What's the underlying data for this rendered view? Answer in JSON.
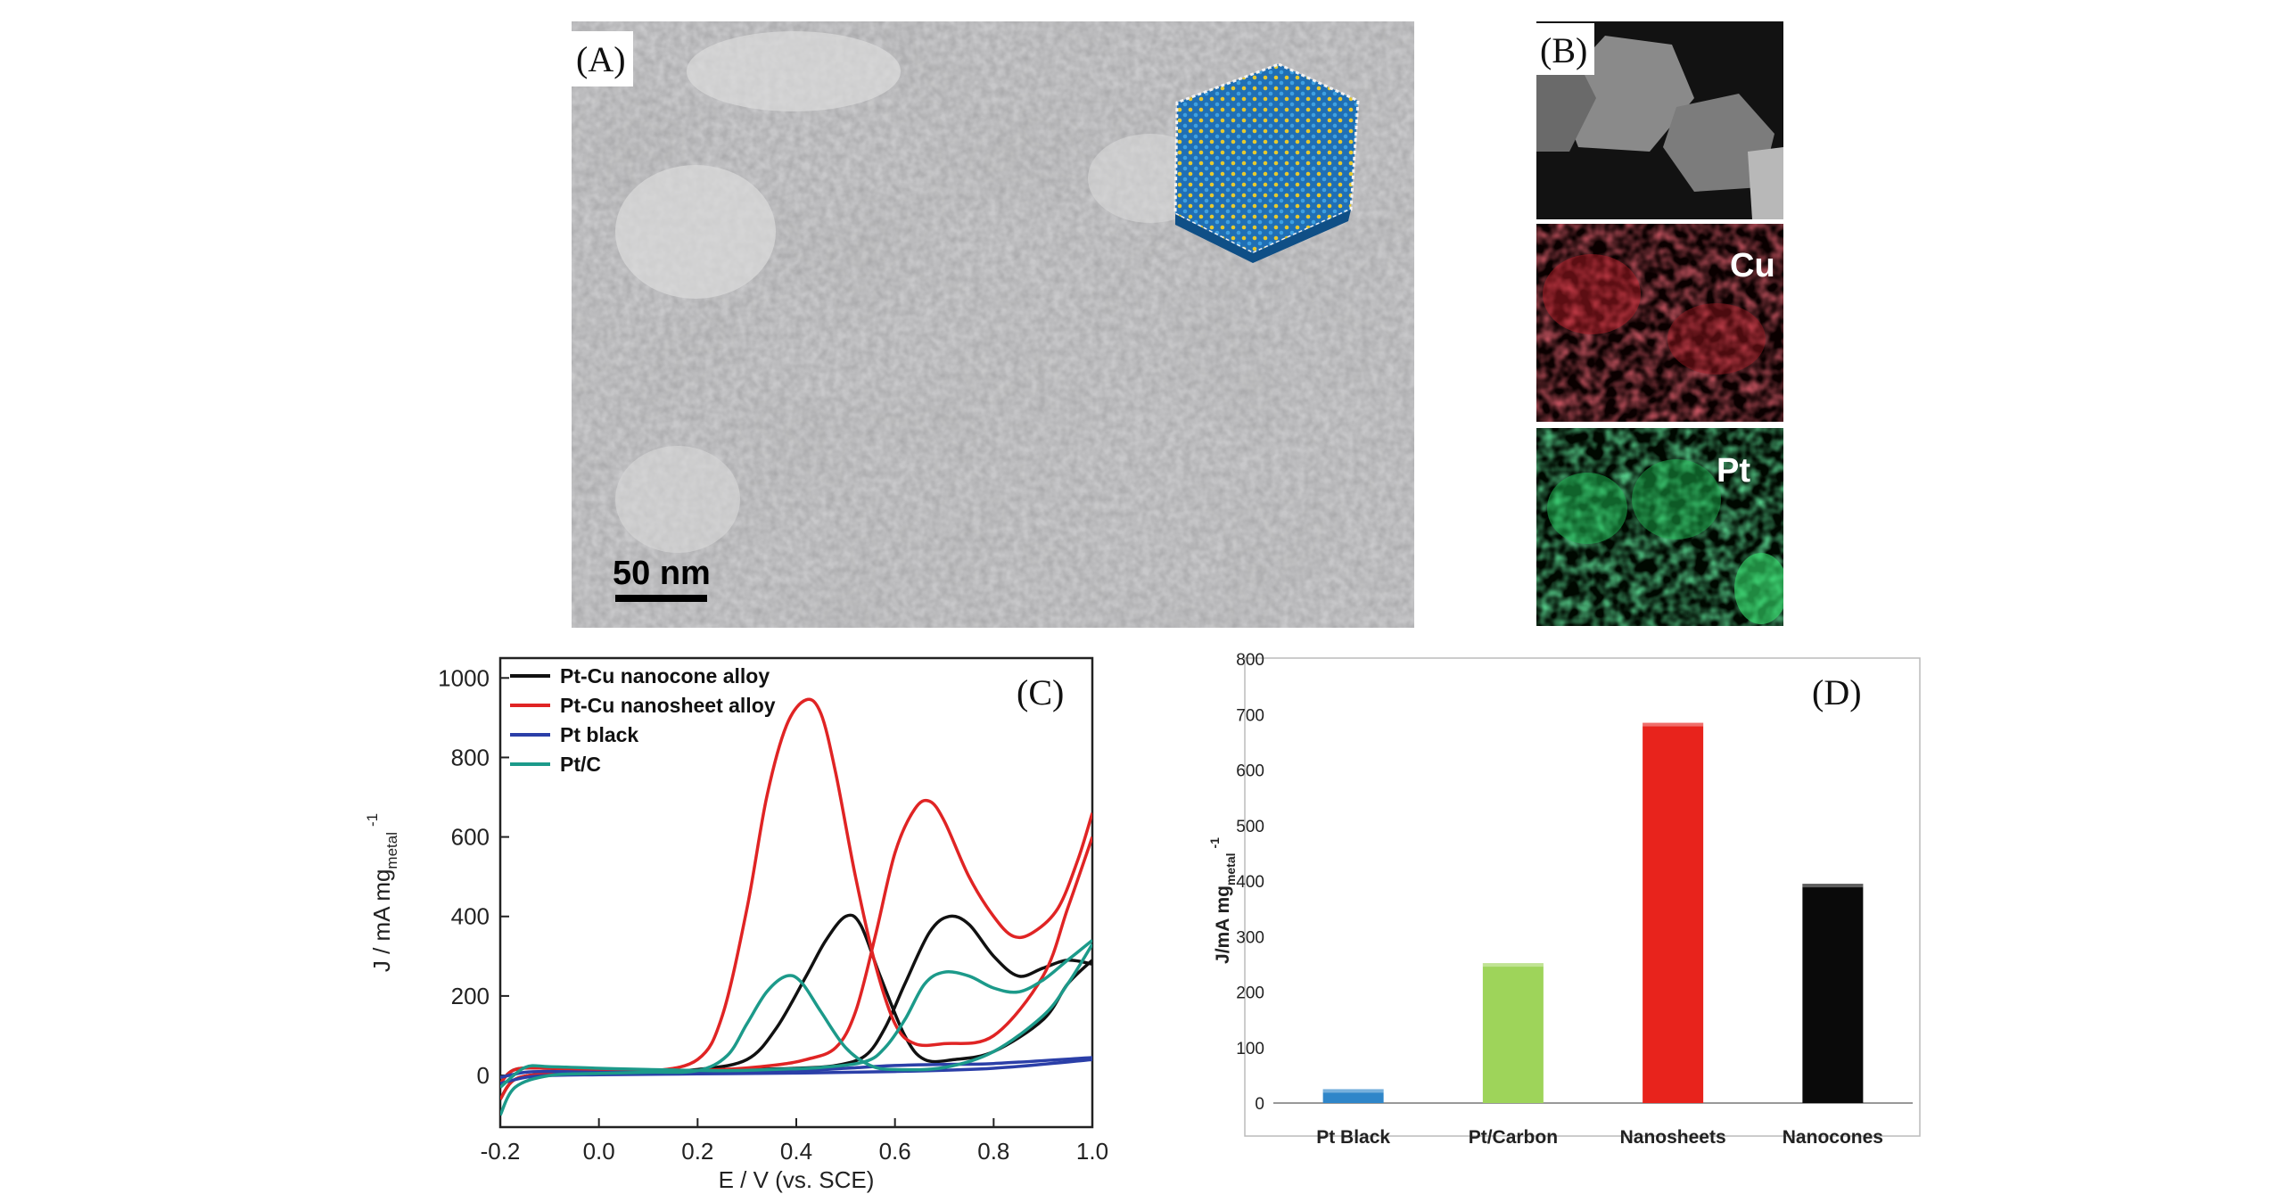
{
  "panel_a": {
    "label": "(A)",
    "scale_bar": "50 nm"
  },
  "panel_b": {
    "label": "(B)",
    "maps": [
      "Cu",
      "Pt"
    ]
  },
  "colors": {
    "nanocone": "#111111",
    "nanosheet": "#e02424",
    "pt_black": "#2b3fa8",
    "pt_c": "#1c9a8a",
    "bar_pt_black": "#2f86c9",
    "bar_pt_carbon": "#9ed45a",
    "bar_nanosheets": "#e8231c",
    "bar_nanocones": "#0a0a0a",
    "cu_map": "#c0202a",
    "pt_map": "#1fbe55"
  },
  "chart_data": [
    {
      "panel": "(C)",
      "type": "line",
      "xlabel": "E / V (vs. SCE)",
      "ylabel_main": "J / mA mg",
      "ylabel_sub": "metal",
      "ylabel_sup": "-1",
      "xlim": [
        -0.2,
        1.0
      ],
      "ylim": [
        -130,
        1050
      ],
      "xticks": [
        "-0.2",
        "0.0",
        "0.2",
        "0.4",
        "0.6",
        "0.8",
        "1.0"
      ],
      "yticks": [
        "0",
        "200",
        "400",
        "600",
        "800",
        "1000"
      ],
      "legend_position": "top-left",
      "series": [
        {
          "name": "Pt-Cu nanocone alloy",
          "color_key": "nanocone",
          "forward": [
            [
              -0.2,
              -60
            ],
            [
              -0.17,
              -10
            ],
            [
              -0.1,
              5
            ],
            [
              0.0,
              8
            ],
            [
              0.1,
              10
            ],
            [
              0.2,
              15
            ],
            [
              0.3,
              40
            ],
            [
              0.36,
              120
            ],
            [
              0.42,
              250
            ],
            [
              0.46,
              340
            ],
            [
              0.5,
              400
            ],
            [
              0.53,
              380
            ],
            [
              0.57,
              250
            ],
            [
              0.62,
              100
            ],
            [
              0.66,
              40
            ],
            [
              0.72,
              40
            ],
            [
              0.8,
              60
            ],
            [
              0.9,
              140
            ],
            [
              0.95,
              230
            ],
            [
              1.0,
              290
            ]
          ],
          "backward": [
            [
              1.0,
              280
            ],
            [
              0.95,
              290
            ],
            [
              0.9,
              270
            ],
            [
              0.85,
              250
            ],
            [
              0.8,
              300
            ],
            [
              0.75,
              380
            ],
            [
              0.71,
              400
            ],
            [
              0.67,
              360
            ],
            [
              0.62,
              230
            ],
            [
              0.58,
              120
            ],
            [
              0.54,
              50
            ],
            [
              0.48,
              25
            ],
            [
              0.4,
              18
            ],
            [
              0.3,
              15
            ],
            [
              0.2,
              12
            ],
            [
              0.1,
              10
            ],
            [
              0.0,
              12
            ],
            [
              -0.1,
              18
            ],
            [
              -0.17,
              15
            ],
            [
              -0.2,
              -20
            ]
          ]
        },
        {
          "name": "Pt-Cu nanosheet alloy",
          "color_key": "nanosheet",
          "forward": [
            [
              -0.2,
              -60
            ],
            [
              -0.17,
              -10
            ],
            [
              -0.1,
              5
            ],
            [
              0.0,
              8
            ],
            [
              0.1,
              10
            ],
            [
              0.2,
              40
            ],
            [
              0.25,
              150
            ],
            [
              0.3,
              420
            ],
            [
              0.34,
              700
            ],
            [
              0.38,
              880
            ],
            [
              0.42,
              945
            ],
            [
              0.45,
              910
            ],
            [
              0.48,
              760
            ],
            [
              0.52,
              500
            ],
            [
              0.56,
              280
            ],
            [
              0.6,
              130
            ],
            [
              0.64,
              80
            ],
            [
              0.7,
              80
            ],
            [
              0.8,
              100
            ],
            [
              0.9,
              250
            ],
            [
              0.95,
              420
            ],
            [
              1.0,
              600
            ]
          ],
          "backward": [
            [
              1.0,
              660
            ],
            [
              0.97,
              540
            ],
            [
              0.93,
              420
            ],
            [
              0.88,
              360
            ],
            [
              0.84,
              350
            ],
            [
              0.8,
              400
            ],
            [
              0.75,
              500
            ],
            [
              0.7,
              640
            ],
            [
              0.67,
              690
            ],
            [
              0.64,
              670
            ],
            [
              0.6,
              560
            ],
            [
              0.56,
              350
            ],
            [
              0.52,
              160
            ],
            [
              0.48,
              70
            ],
            [
              0.42,
              40
            ],
            [
              0.35,
              25
            ],
            [
              0.25,
              15
            ],
            [
              0.1,
              10
            ],
            [
              0.0,
              12
            ],
            [
              -0.1,
              18
            ],
            [
              -0.17,
              15
            ],
            [
              -0.2,
              -20
            ]
          ]
        },
        {
          "name": "Pt black",
          "color_key": "pt_black",
          "forward": [
            [
              -0.2,
              -20
            ],
            [
              -0.15,
              -5
            ],
            [
              -0.1,
              0
            ],
            [
              0.0,
              2
            ],
            [
              0.2,
              4
            ],
            [
              0.4,
              6
            ],
            [
              0.6,
              10
            ],
            [
              0.8,
              18
            ],
            [
              1.0,
              40
            ]
          ],
          "backward": [
            [
              1.0,
              45
            ],
            [
              0.8,
              30
            ],
            [
              0.7,
              28
            ],
            [
              0.6,
              25
            ],
            [
              0.5,
              18
            ],
            [
              0.4,
              12
            ],
            [
              0.2,
              8
            ],
            [
              0.0,
              8
            ],
            [
              -0.1,
              10
            ],
            [
              -0.15,
              8
            ],
            [
              -0.2,
              -5
            ]
          ]
        },
        {
          "name": "Pt/C",
          "color_key": "pt_c",
          "forward": [
            [
              -0.2,
              -100
            ],
            [
              -0.17,
              -30
            ],
            [
              -0.1,
              0
            ],
            [
              0.0,
              5
            ],
            [
              0.1,
              8
            ],
            [
              0.2,
              12
            ],
            [
              0.26,
              50
            ],
            [
              0.3,
              130
            ],
            [
              0.34,
              210
            ],
            [
              0.38,
              250
            ],
            [
              0.41,
              235
            ],
            [
              0.45,
              160
            ],
            [
              0.5,
              70
            ],
            [
              0.55,
              25
            ],
            [
              0.6,
              15
            ],
            [
              0.7,
              20
            ],
            [
              0.8,
              60
            ],
            [
              0.9,
              150
            ],
            [
              0.95,
              230
            ],
            [
              1.0,
              330
            ]
          ],
          "backward": [
            [
              1.0,
              340
            ],
            [
              0.95,
              290
            ],
            [
              0.9,
              240
            ],
            [
              0.85,
              210
            ],
            [
              0.8,
              220
            ],
            [
              0.75,
              250
            ],
            [
              0.7,
              260
            ],
            [
              0.66,
              230
            ],
            [
              0.62,
              140
            ],
            [
              0.58,
              70
            ],
            [
              0.54,
              35
            ],
            [
              0.45,
              20
            ],
            [
              0.35,
              15
            ],
            [
              0.25,
              12
            ],
            [
              0.1,
              15
            ],
            [
              0.0,
              18
            ],
            [
              -0.1,
              22
            ],
            [
              -0.15,
              20
            ],
            [
              -0.2,
              -30
            ]
          ]
        }
      ]
    },
    {
      "panel": "(D)",
      "type": "bar",
      "ylabel_main": "J/mA mg",
      "ylabel_sub": "metal",
      "ylabel_sup": "-1",
      "ylim": [
        0,
        800
      ],
      "yticks": [
        "0",
        "100",
        "200",
        "300",
        "400",
        "500",
        "600",
        "700",
        "800"
      ],
      "categories": [
        "Pt Black",
        "Pt/Carbon",
        "Nanosheets",
        "Nanocones"
      ],
      "values": [
        25,
        252,
        685,
        395
      ],
      "color_keys": [
        "bar_pt_black",
        "bar_pt_carbon",
        "bar_nanosheets",
        "bar_nanocones"
      ]
    }
  ]
}
